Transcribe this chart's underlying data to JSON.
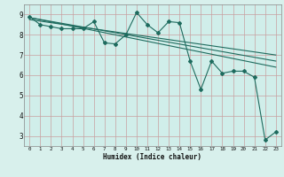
{
  "title": "",
  "xlabel": "Humidex (Indice chaleur)",
  "background_color": "#d8f0ec",
  "plot_bg_color": "#d0eeea",
  "grid_color": "#c8a0a0",
  "line_color": "#1e6b5e",
  "outer_bg": "#d0e8e4",
  "xlim": [
    -0.5,
    23.5
  ],
  "ylim": [
    2.5,
    9.5
  ],
  "xticks": [
    0,
    1,
    2,
    3,
    4,
    5,
    6,
    7,
    8,
    9,
    10,
    11,
    12,
    13,
    14,
    15,
    16,
    17,
    18,
    19,
    20,
    21,
    22,
    23
  ],
  "yticks": [
    3,
    4,
    5,
    6,
    7,
    8,
    9
  ],
  "series1_x": [
    0,
    1,
    2,
    3,
    4,
    5,
    6,
    7,
    8,
    9,
    10,
    11,
    12,
    13,
    14,
    15,
    16,
    17,
    18,
    19,
    20,
    21,
    22,
    23
  ],
  "series1_y": [
    8.9,
    8.5,
    8.4,
    8.3,
    8.3,
    8.3,
    8.65,
    7.6,
    7.55,
    8.0,
    9.1,
    8.5,
    8.1,
    8.65,
    8.6,
    6.7,
    5.3,
    6.7,
    6.1,
    6.2,
    6.2,
    5.9,
    2.8,
    3.2
  ],
  "series2_x": [
    0,
    23
  ],
  "series2_y": [
    8.85,
    6.4
  ],
  "series3_x": [
    0,
    23
  ],
  "series3_y": [
    8.85,
    6.7
  ],
  "series4_x": [
    0,
    23
  ],
  "series4_y": [
    8.75,
    7.0
  ]
}
